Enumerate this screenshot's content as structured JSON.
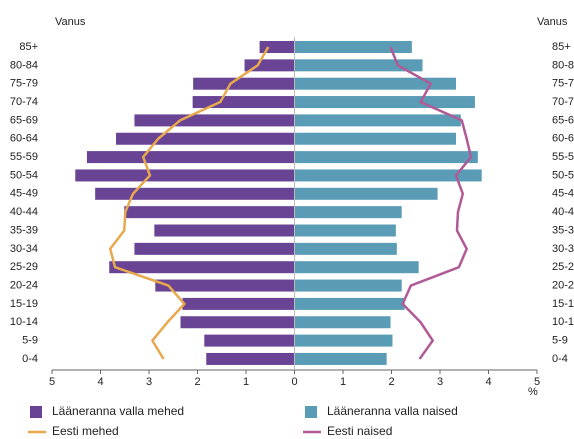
{
  "chart_data": {
    "type": "pyramid",
    "y_axis_label": "Vanus",
    "x_axis_label": "%",
    "categories": [
      "85+",
      "80-84",
      "75-79",
      "70-74",
      "65-69",
      "60-64",
      "55-59",
      "50-54",
      "45-49",
      "40-44",
      "35-39",
      "30-34",
      "25-29",
      "20-24",
      "15-19",
      "10-14",
      "5-9",
      "0-4"
    ],
    "series": [
      {
        "name": "Lääneranna valla mehed",
        "kind": "bar",
        "side": "left",
        "color": "#6a4494",
        "values": [
          0.72,
          1.03,
          2.09,
          2.1,
          3.3,
          3.68,
          4.28,
          4.52,
          4.11,
          3.51,
          2.89,
          3.3,
          3.82,
          2.87,
          2.31,
          2.35,
          1.86,
          1.82
        ]
      },
      {
        "name": "Lääneranna valla naised",
        "kind": "bar",
        "side": "right",
        "color": "#5a9cb6",
        "values": [
          2.42,
          2.64,
          3.33,
          3.72,
          3.43,
          3.33,
          3.78,
          3.86,
          2.95,
          2.21,
          2.09,
          2.11,
          2.56,
          2.21,
          2.27,
          1.98,
          2.02,
          1.9
        ]
      },
      {
        "name": "Eesti mehed",
        "kind": "line",
        "side": "left",
        "color": "#e8a84e",
        "values": [
          0.54,
          0.76,
          1.32,
          1.53,
          2.36,
          2.81,
          3.12,
          2.98,
          3.33,
          3.49,
          3.51,
          3.8,
          3.7,
          2.6,
          2.27,
          2.62,
          2.93,
          2.7
        ]
      },
      {
        "name": "Eesti naised",
        "kind": "line",
        "side": "right",
        "color": "#b05a96",
        "values": [
          1.98,
          2.13,
          2.81,
          2.6,
          3.45,
          3.55,
          3.64,
          3.33,
          3.47,
          3.37,
          3.35,
          3.55,
          3.39,
          2.4,
          2.23,
          2.6,
          2.85,
          2.58
        ]
      }
    ],
    "xlim": [
      0,
      5
    ],
    "xticks": [
      0,
      1,
      2,
      3,
      4,
      5
    ]
  }
}
